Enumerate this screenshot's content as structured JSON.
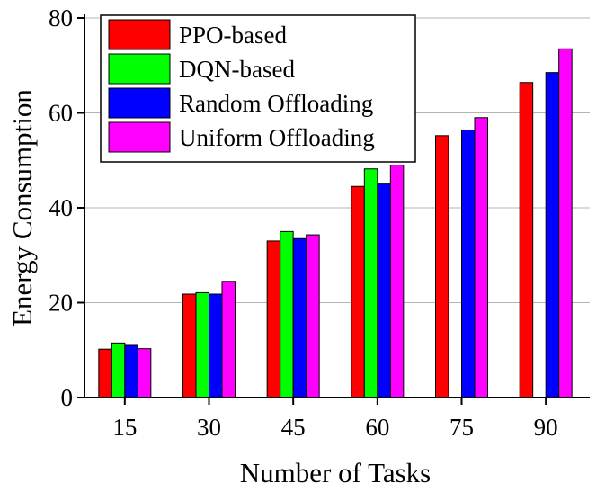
{
  "chart_data": {
    "type": "bar",
    "title": "",
    "xlabel": "Number of Tasks",
    "ylabel": "Energy Consumption",
    "categories": [
      "15",
      "30",
      "45",
      "60",
      "75",
      "90"
    ],
    "ylim": [
      0,
      80
    ],
    "yticks": [
      0,
      20,
      40,
      60,
      80
    ],
    "grid": true,
    "legend_position": "top-left",
    "series": [
      {
        "name": "PPO-based",
        "color": "#ff0000",
        "values": [
          10.2,
          21.8,
          33.0,
          44.5,
          55.2,
          66.4
        ]
      },
      {
        "name": "DQN-based",
        "color": "#00ff00",
        "values": [
          11.5,
          22.1,
          35.0,
          48.2,
          null,
          null
        ]
      },
      {
        "name": "Random Offloading",
        "color": "#0000ff",
        "values": [
          11.0,
          21.8,
          33.5,
          45.0,
          56.4,
          68.5
        ]
      },
      {
        "name": "Uniform Offloading",
        "color": "#ff00ff",
        "values": [
          10.3,
          24.5,
          34.3,
          49.0,
          59.0,
          73.5
        ]
      }
    ]
  }
}
